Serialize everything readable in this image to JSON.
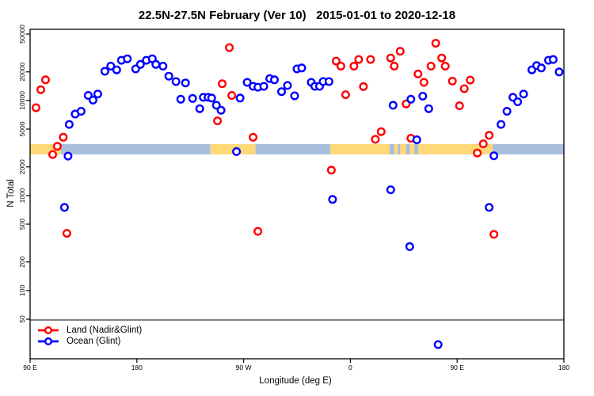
{
  "page": {
    "title": "22.5N-27.5N February (Ver 10)   2015-01-01 to 2020-12-18"
  },
  "axes": {
    "x_label": "Longitude (deg E)",
    "y_label": "N Total"
  },
  "legend": {
    "items": [
      {
        "id": "land",
        "label": "Land (Nadir&Glint)",
        "color": "#ff0000"
      },
      {
        "id": "ocean",
        "label": "Ocean (Glint)",
        "color": "#0000ff"
      }
    ]
  },
  "chart_data": {
    "type": "scatter",
    "title": "22.5N-27.5N February (Ver 10)   2015-01-01 to 2020-12-18",
    "xlabel": "Longitude (deg E)",
    "ylabel": "N Total",
    "x_axis": {
      "unit": "deg E",
      "start_deg": 90,
      "end_deg": 540,
      "ticks": [
        {
          "deg": 90,
          "label": "90 E"
        },
        {
          "deg": 180,
          "label": "180"
        },
        {
          "deg": 270,
          "label": "90 W"
        },
        {
          "deg": 360,
          "label": "0"
        },
        {
          "deg": 450,
          "label": "90 E"
        },
        {
          "deg": 540,
          "label": "180"
        }
      ]
    },
    "y_axis": {
      "scale": "log10",
      "ticks": [
        50,
        100,
        200,
        500,
        1000,
        2000,
        5000,
        10000,
        20000,
        50000
      ],
      "top_value": 50000,
      "grid": false
    },
    "marker": {
      "shape": "open-circle",
      "fill": "#ffffff"
    },
    "surface_band": {
      "colors": {
        "land": "#ffd878",
        "ocean": "#a7bedd"
      },
      "value_range": [
        2700,
        3500
      ],
      "segments": [
        {
          "from": 90,
          "to": 116,
          "surface": "land"
        },
        {
          "from": 116,
          "to": 242,
          "surface": "ocean"
        },
        {
          "from": 242,
          "to": 280,
          "surface": "land"
        },
        {
          "from": 280,
          "to": 343,
          "surface": "ocean"
        },
        {
          "from": 343,
          "to": 480,
          "surface": "land"
        },
        {
          "from": 480,
          "to": 540,
          "surface": "ocean"
        }
      ],
      "ocean_inlets": [
        [
          393,
          397
        ],
        [
          400,
          402
        ],
        [
          407,
          410
        ],
        [
          414,
          417
        ]
      ]
    },
    "series": [
      {
        "id": "land",
        "name": "Land (Nadir&Glint)",
        "color": "#ff0000",
        "points": [
          [
            95,
            8400
          ],
          [
            99,
            13000
          ],
          [
            103,
            16500
          ],
          [
            109,
            2700
          ],
          [
            113,
            3300
          ],
          [
            118,
            4100
          ],
          [
            121,
            400
          ],
          [
            248,
            6100
          ],
          [
            252,
            15000
          ],
          [
            258,
            36000
          ],
          [
            260,
            11300
          ],
          [
            278,
            4100
          ],
          [
            282,
            420
          ],
          [
            344,
            1850
          ],
          [
            348,
            26000
          ],
          [
            352,
            23000
          ],
          [
            356,
            11500
          ],
          [
            363,
            23000
          ],
          [
            367,
            27000
          ],
          [
            371,
            14000
          ],
          [
            377,
            27000
          ],
          [
            381,
            3900
          ],
          [
            386,
            4700
          ],
          [
            394,
            28000
          ],
          [
            397,
            23000
          ],
          [
            402,
            33000
          ],
          [
            407,
            9200
          ],
          [
            411,
            4000
          ],
          [
            417,
            19000
          ],
          [
            422,
            15500
          ],
          [
            428,
            23000
          ],
          [
            432,
            40000
          ],
          [
            437,
            28000
          ],
          [
            440,
            23000
          ],
          [
            446,
            16000
          ],
          [
            452,
            8800
          ],
          [
            456,
            13300
          ],
          [
            461,
            16400
          ],
          [
            467,
            2800
          ],
          [
            472,
            3500
          ],
          [
            477,
            4300
          ],
          [
            481,
            390
          ]
        ]
      },
      {
        "id": "ocean",
        "name": "Ocean (Glint)",
        "color": "#0000ff",
        "points": [
          [
            119,
            750
          ],
          [
            122,
            2600
          ],
          [
            123,
            5600
          ],
          [
            128,
            7200
          ],
          [
            133,
            7700
          ],
          [
            139,
            11300
          ],
          [
            143,
            10100
          ],
          [
            147,
            11700
          ],
          [
            153,
            20300
          ],
          [
            158,
            23000
          ],
          [
            163,
            21000
          ],
          [
            167,
            26500
          ],
          [
            172,
            27500
          ],
          [
            179,
            21500
          ],
          [
            183,
            24000
          ],
          [
            188,
            26500
          ],
          [
            193,
            27500
          ],
          [
            196,
            24000
          ],
          [
            202,
            23000
          ],
          [
            207,
            18000
          ],
          [
            213,
            15800
          ],
          [
            217,
            10300
          ],
          [
            221,
            15300
          ],
          [
            227,
            10500
          ],
          [
            233,
            8200
          ],
          [
            236,
            10800
          ],
          [
            240,
            10800
          ],
          [
            243,
            10600
          ],
          [
            247,
            8900
          ],
          [
            251,
            7900
          ],
          [
            264,
            2900
          ],
          [
            267,
            10600
          ],
          [
            273,
            15500
          ],
          [
            278,
            14100
          ],
          [
            282,
            13800
          ],
          [
            287,
            14100
          ],
          [
            292,
            17000
          ],
          [
            296,
            16500
          ],
          [
            302,
            12400
          ],
          [
            307,
            14400
          ],
          [
            313,
            11200
          ],
          [
            315,
            21500
          ],
          [
            319,
            22000
          ],
          [
            327,
            15500
          ],
          [
            330,
            14100
          ],
          [
            334,
            14100
          ],
          [
            337,
            15800
          ],
          [
            342,
            15800
          ],
          [
            345,
            910
          ],
          [
            394,
            1150
          ],
          [
            396,
            8900
          ],
          [
            410,
            290
          ],
          [
            411,
            10300
          ],
          [
            416,
            3860
          ],
          [
            421,
            11100
          ],
          [
            426,
            8200
          ],
          [
            434,
            27
          ],
          [
            477,
            750
          ],
          [
            481,
            2620
          ],
          [
            487,
            5600
          ],
          [
            492,
            7700
          ],
          [
            497,
            10800
          ],
          [
            501,
            9700
          ],
          [
            506,
            11700
          ],
          [
            513,
            21000
          ],
          [
            517,
            23300
          ],
          [
            521,
            22000
          ],
          [
            527,
            26500
          ],
          [
            531,
            27000
          ],
          [
            536,
            20000
          ]
        ]
      }
    ]
  }
}
